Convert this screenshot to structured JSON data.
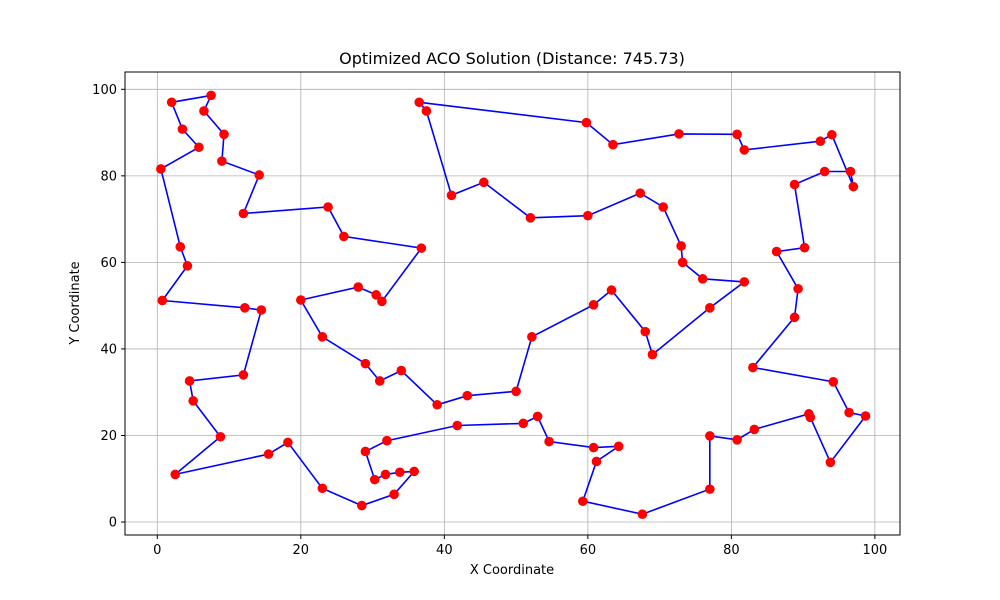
{
  "chart_data": {
    "type": "line",
    "title": "Optimized ACO Solution (Distance: 745.73)",
    "xlabel": "X Coordinate",
    "ylabel": "Y Coordinate",
    "xlim": [
      -4.5,
      103.5
    ],
    "ylim": [
      -3,
      104
    ],
    "xticks": [
      0,
      20,
      40,
      60,
      80,
      100
    ],
    "yticks": [
      0,
      20,
      40,
      60,
      80,
      100
    ],
    "grid": true,
    "line_color": "#0000ff",
    "marker_color": "#ff0000",
    "route": [
      [
        36.5,
        97.0
      ],
      [
        37.5,
        95.0
      ],
      [
        41.0,
        75.5
      ],
      [
        45.5,
        78.5
      ],
      [
        52.0,
        70.3
      ],
      [
        60.0,
        70.8
      ],
      [
        67.3,
        76.0
      ],
      [
        70.5,
        72.8
      ],
      [
        73.0,
        63.8
      ],
      [
        73.2,
        60.0
      ],
      [
        76.0,
        56.2
      ],
      [
        81.8,
        55.5
      ],
      [
        77.0,
        49.5
      ],
      [
        69.0,
        38.7
      ],
      [
        68.0,
        44.0
      ],
      [
        63.3,
        53.6
      ],
      [
        60.8,
        50.2
      ],
      [
        52.2,
        42.8
      ],
      [
        50.0,
        30.2
      ],
      [
        43.2,
        29.2
      ],
      [
        39.0,
        27.1
      ],
      [
        34.0,
        35.0
      ],
      [
        31.0,
        32.6
      ],
      [
        29.0,
        36.6
      ],
      [
        23.0,
        42.8
      ],
      [
        20.0,
        51.3
      ],
      [
        28.0,
        54.3
      ],
      [
        30.5,
        52.5
      ],
      [
        31.3,
        51.0
      ],
      [
        36.8,
        63.3
      ],
      [
        26.0,
        66.0
      ],
      [
        23.8,
        72.8
      ],
      [
        12.0,
        71.3
      ],
      [
        14.2,
        80.2
      ],
      [
        9.0,
        83.4
      ],
      [
        9.3,
        89.6
      ],
      [
        6.5,
        95.0
      ],
      [
        7.5,
        98.6
      ],
      [
        2.0,
        97.0
      ],
      [
        3.5,
        90.8
      ],
      [
        5.8,
        86.6
      ],
      [
        0.5,
        81.6
      ],
      [
        3.2,
        63.6
      ],
      [
        4.2,
        59.2
      ],
      [
        0.7,
        51.2
      ],
      [
        12.2,
        49.5
      ],
      [
        14.5,
        49.0
      ],
      [
        12.0,
        34.0
      ],
      [
        4.5,
        32.6
      ],
      [
        5.0,
        28.0
      ],
      [
        8.8,
        19.7
      ],
      [
        2.5,
        11.0
      ],
      [
        15.5,
        15.7
      ],
      [
        18.2,
        18.4
      ],
      [
        23.0,
        7.8
      ],
      [
        28.5,
        3.8
      ],
      [
        33.0,
        6.4
      ],
      [
        35.8,
        11.7
      ],
      [
        33.8,
        11.5
      ],
      [
        31.8,
        11.0
      ],
      [
        30.3,
        9.8
      ],
      [
        29.0,
        16.3
      ],
      [
        32.0,
        18.8
      ],
      [
        41.8,
        22.3
      ],
      [
        51.0,
        22.8
      ],
      [
        53.0,
        24.4
      ],
      [
        54.6,
        18.6
      ],
      [
        60.8,
        17.2
      ],
      [
        64.3,
        17.5
      ],
      [
        61.2,
        14.0
      ],
      [
        59.3,
        4.8
      ],
      [
        67.6,
        1.8
      ],
      [
        77.0,
        7.6
      ],
      [
        77.0,
        19.9
      ],
      [
        80.8,
        19.0
      ],
      [
        83.2,
        21.4
      ],
      [
        90.8,
        25.0
      ],
      [
        91.0,
        24.2
      ],
      [
        93.8,
        13.8
      ],
      [
        98.7,
        24.5
      ],
      [
        96.4,
        25.3
      ],
      [
        94.2,
        32.4
      ],
      [
        83.0,
        35.7
      ],
      [
        88.8,
        47.3
      ],
      [
        89.3,
        53.9
      ],
      [
        86.3,
        62.5
      ],
      [
        90.2,
        63.4
      ],
      [
        88.8,
        78.0
      ],
      [
        93.0,
        81.0
      ],
      [
        96.6,
        81.0
      ],
      [
        97.0,
        77.5
      ],
      [
        94.0,
        89.5
      ],
      [
        92.4,
        88.0
      ],
      [
        81.8,
        86.0
      ],
      [
        80.8,
        89.6
      ],
      [
        72.7,
        89.7
      ],
      [
        63.5,
        87.2
      ],
      [
        59.8,
        92.3
      ],
      [
        36.5,
        97.0
      ]
    ]
  }
}
